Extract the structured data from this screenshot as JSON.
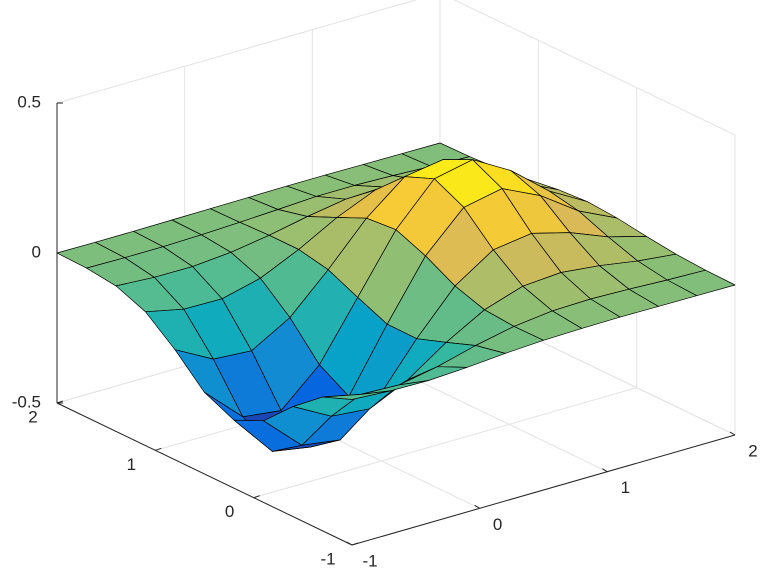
{
  "chart_data": {
    "type": "surface",
    "x": [
      -1,
      -0.7,
      -0.4,
      -0.1,
      0.2,
      0.5,
      0.8,
      1.1,
      1.4,
      1.7,
      2
    ],
    "y": [
      -1,
      -0.7,
      -0.4,
      -0.1,
      0.2,
      0.5,
      0.8,
      1.1,
      1.4,
      1.7,
      2
    ],
    "z": [
      [
        -0.015,
        -0.023,
        -0.025,
        -0.018,
        -0.008,
        -0.001,
        0.002,
        0.003,
        0.002,
        0.001,
        0.0
      ],
      [
        -0.054,
        -0.082,
        -0.087,
        -0.063,
        -0.029,
        -0.002,
        0.013,
        0.016,
        0.012,
        0.006,
        0.002
      ],
      [
        -0.133,
        -0.202,
        -0.214,
        -0.154,
        -0.066,
        0.006,
        0.048,
        0.057,
        0.043,
        0.022,
        0.008
      ],
      [
        -0.228,
        -0.346,
        -0.365,
        -0.26,
        -0.101,
        0.038,
        0.122,
        0.14,
        0.106,
        0.055,
        0.02
      ],
      [
        -0.273,
        -0.414,
        -0.436,
        -0.304,
        -0.1,
        0.091,
        0.216,
        0.242,
        0.182,
        0.094,
        0.034
      ],
      [
        -0.228,
        -0.346,
        -0.362,
        -0.246,
        -0.058,
        0.131,
        0.264,
        0.291,
        0.218,
        0.113,
        0.041
      ],
      [
        -0.133,
        -0.201,
        -0.21,
        -0.136,
        -0.013,
        0.122,
        0.224,
        0.244,
        0.182,
        0.094,
        0.034
      ],
      [
        -0.054,
        -0.082,
        -0.084,
        -0.052,
        0.007,
        0.077,
        0.132,
        0.142,
        0.106,
        0.055,
        0.02
      ],
      [
        -0.015,
        -0.023,
        -0.024,
        -0.013,
        0.007,
        0.033,
        0.054,
        0.058,
        0.043,
        0.022,
        0.008
      ],
      [
        -0.003,
        -0.005,
        -0.005,
        -0.002,
        0.003,
        0.009,
        0.016,
        0.016,
        0.012,
        0.006,
        0.002
      ],
      [
        0.0,
        -0.001,
        -0.001,
        0.0,
        0.001,
        0.002,
        0.003,
        0.003,
        0.002,
        0.001,
        0.0
      ]
    ],
    "xlim": [
      -1,
      2
    ],
    "ylim": [
      -1,
      2
    ],
    "zlim": [
      -0.5,
      0.5
    ],
    "xticks": [
      -1,
      0,
      1,
      2
    ],
    "yticks": [
      -1,
      0,
      1,
      2
    ],
    "zticks": [
      -0.5,
      0,
      0.5
    ],
    "grid": true,
    "colormap": [
      "#352a87",
      "#0363e1",
      "#1485d4",
      "#06a7c6",
      "#38b99e",
      "#92bf73",
      "#d9ba56",
      "#fcce2e",
      "#f9fb0e"
    ]
  }
}
